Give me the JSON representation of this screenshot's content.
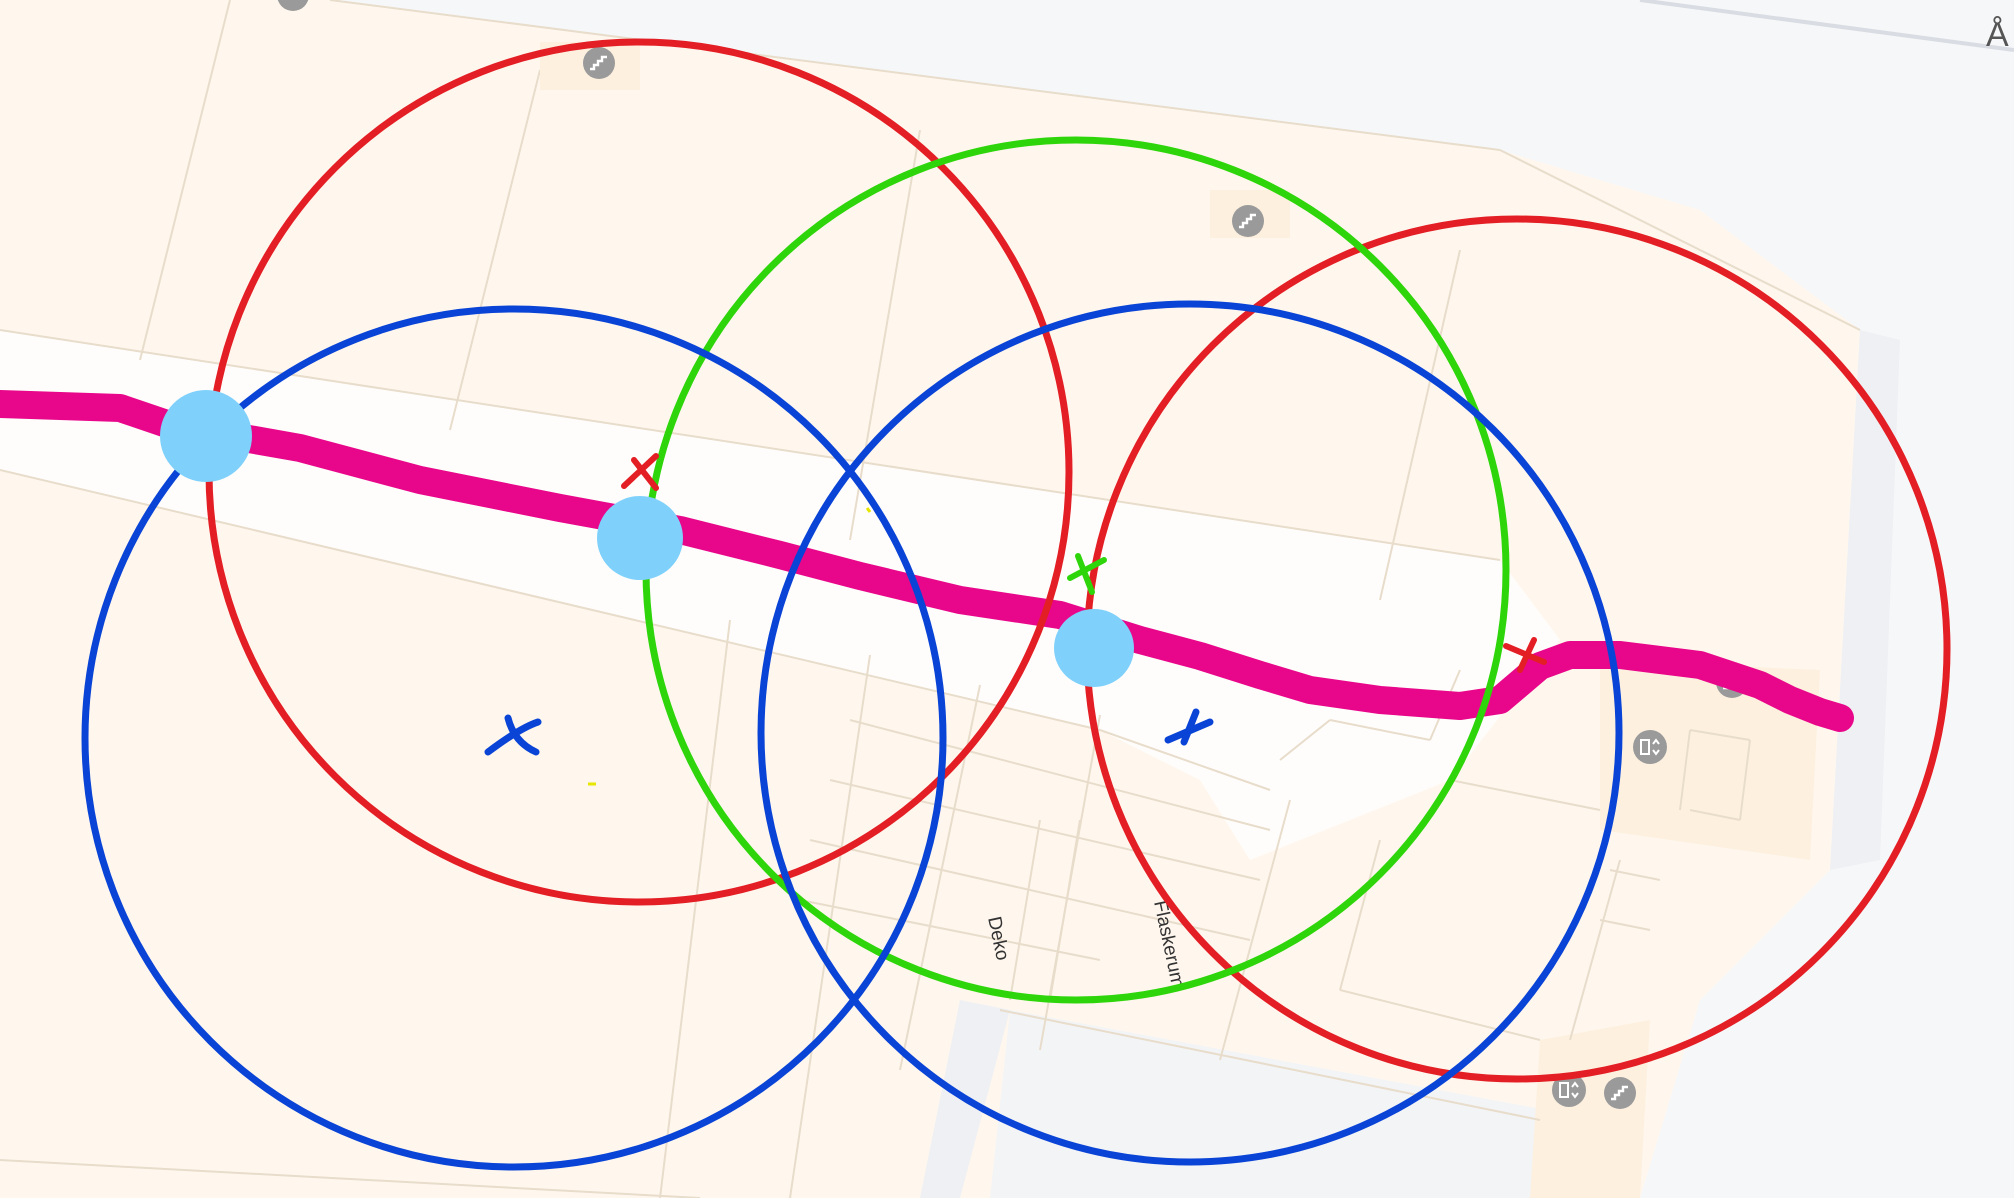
{
  "map": {
    "room_labels": {
      "deko": "Deko",
      "flaskerum": "Flaskerum"
    },
    "edge_label": "Å",
    "icons": {
      "stairs": "stairs-icon",
      "elevator": "elevator-icon"
    }
  },
  "overlay": {
    "colors": {
      "path": "#e8078a",
      "waypoint": "#7fd1fb",
      "red_circle": "#e31e24",
      "green_circle": "#2ed50a",
      "blue_circle": "#0a44d6",
      "floor": "#fff7ee",
      "corridor": "#fffdfb",
      "outside": "#f6f7f9",
      "wall_line": "#e8dccb"
    }
  }
}
